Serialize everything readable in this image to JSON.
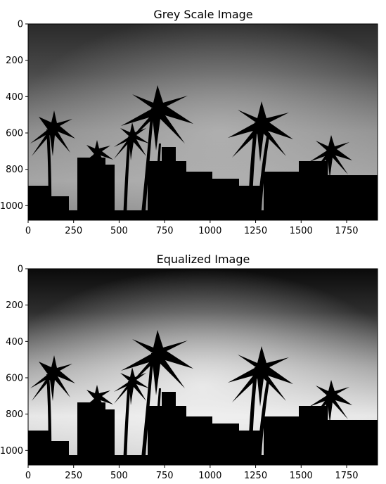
{
  "chart_data": [
    {
      "type": "image",
      "title": "Grey Scale Image",
      "xlim": [
        0,
        1920
      ],
      "ylim": [
        1080,
        0
      ],
      "xticks": [
        0,
        250,
        500,
        750,
        1000,
        1250,
        1500,
        1750
      ],
      "yticks": [
        0,
        200,
        400,
        600,
        800,
        1000
      ],
      "style": "grey"
    },
    {
      "type": "image",
      "title": "Equalized Image",
      "xlim": [
        0,
        1920
      ],
      "ylim": [
        1080,
        0
      ],
      "xticks": [
        0,
        250,
        500,
        750,
        1000,
        1250,
        1500,
        1750
      ],
      "yticks": [
        0,
        200,
        400,
        600,
        800,
        1000
      ],
      "style": "equalized"
    }
  ]
}
